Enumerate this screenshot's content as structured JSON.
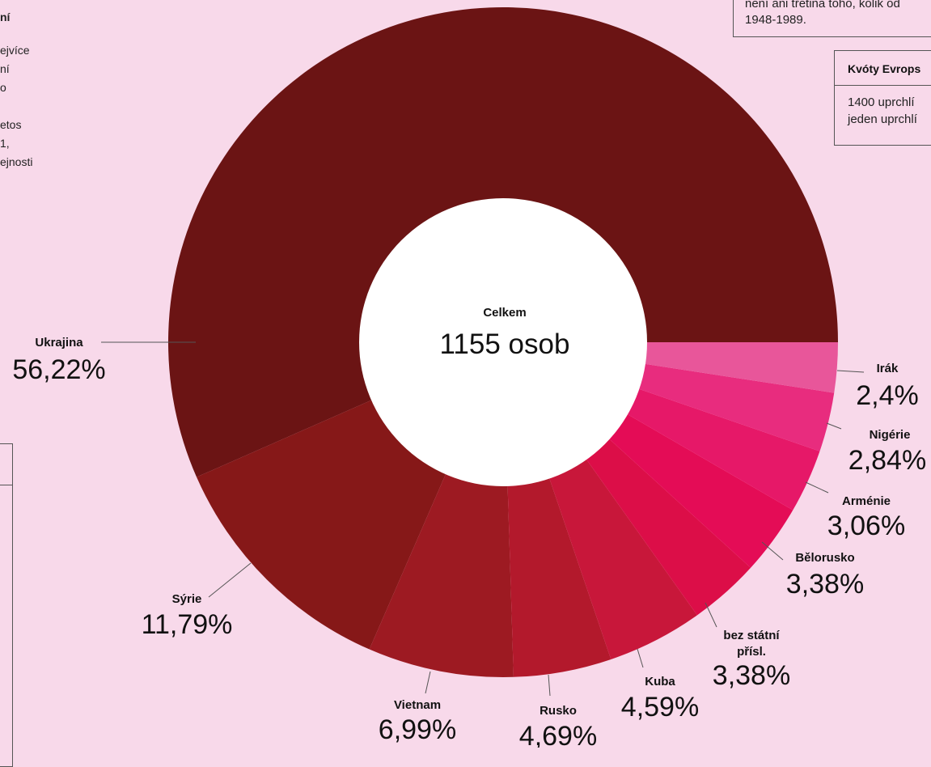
{
  "side_text": {
    "left_heading": "ní",
    "left_lines_a": [
      "ejvíce",
      "ní",
      "o"
    ],
    "left_lines_b": [
      "etos",
      "1,",
      "ejnosti"
    ],
    "top_box_lines": [
      "není ani třetina toho, kolik od",
      "1948-1989."
    ],
    "quota_box": {
      "title": "Kvóty Evrops",
      "lines": [
        "1400 uprchlí",
        "jeden uprchlí"
      ]
    }
  },
  "chart_data": {
    "type": "pie",
    "donut": true,
    "center_label": "Celkem",
    "center_value": "1155 osob",
    "slices": [
      {
        "name": "Ukrajina",
        "value": 56.22,
        "label": "56,22%",
        "color": "#6b1414"
      },
      {
        "name": "Sýrie",
        "value": 11.79,
        "label": "11,79%",
        "color": "#861818"
      },
      {
        "name": "Vietnam",
        "value": 6.99,
        "label": "6,99%",
        "color": "#9d1a22"
      },
      {
        "name": "Rusko",
        "value": 4.69,
        "label": "4,69%",
        "color": "#b3192c"
      },
      {
        "name": "Kuba",
        "value": 4.59,
        "label": "4,59%",
        "color": "#c8173a"
      },
      {
        "name": "bez státní přísl.",
        "name_lines": [
          "bez státní",
          "přísl."
        ],
        "value": 3.38,
        "label": "3,38%",
        "color": "#dc0e48"
      },
      {
        "name": "Bělorusko",
        "value": 3.38,
        "label": "3,38%",
        "color": "#e40c56"
      },
      {
        "name": "Arménie",
        "value": 3.06,
        "label": "3,06%",
        "color": "#e61868"
      },
      {
        "name": "Nigérie",
        "value": 2.84,
        "label": "2,84%",
        "color": "#e82c7e"
      },
      {
        "name": "Irák",
        "value": 2.4,
        "label": "2,4%",
        "color": "#e8569a"
      }
    ]
  }
}
